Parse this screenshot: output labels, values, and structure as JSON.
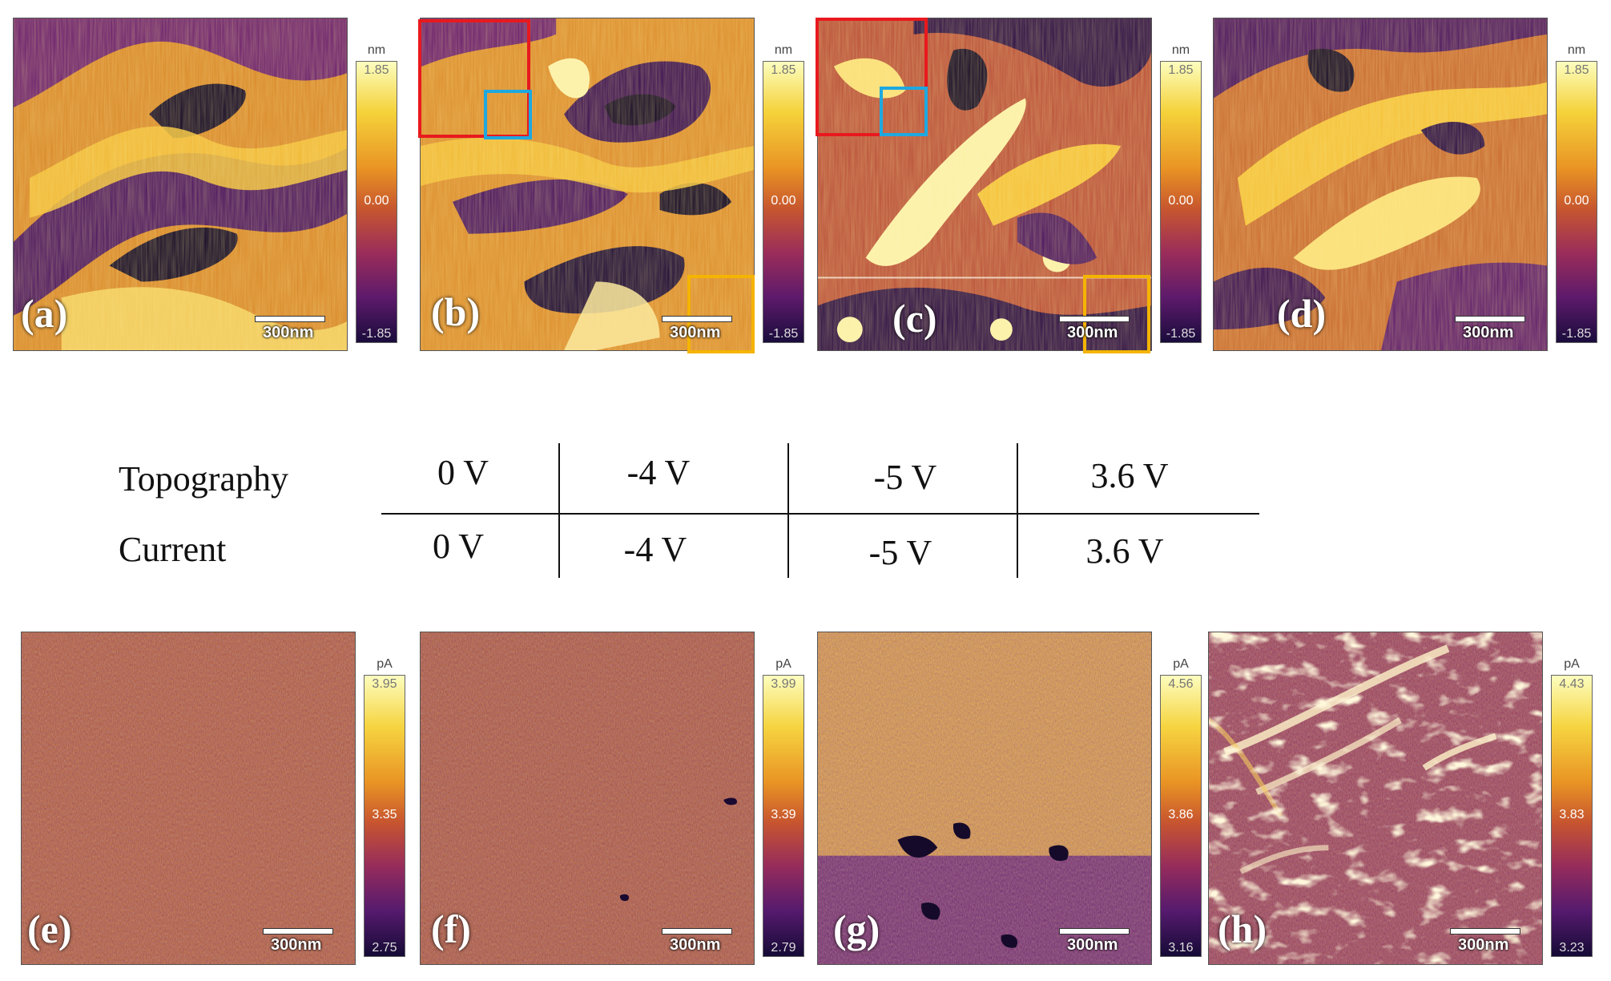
{
  "figure": {
    "topography_panels": [
      {
        "label": "(a)",
        "scale": "300nm",
        "unit": "nm",
        "max": "1.85",
        "mid": "0.00",
        "min": "-1.85"
      },
      {
        "label": "(b)",
        "scale": "300nm",
        "unit": "nm",
        "max": "1.85",
        "mid": "0.00",
        "min": "-1.85"
      },
      {
        "label": "(c)",
        "scale": "300nm",
        "unit": "nm",
        "max": "1.85",
        "mid": "0.00",
        "min": "-1.85"
      },
      {
        "label": "(d)",
        "scale": "300nm",
        "unit": "nm",
        "max": "1.85",
        "mid": "0.00",
        "min": "-1.85"
      }
    ],
    "current_panels": [
      {
        "label": "(e)",
        "scale": "300nm",
        "unit": "pA",
        "max": "3.95",
        "mid": "3.35",
        "min": "2.75"
      },
      {
        "label": "(f)",
        "scale": "300nm",
        "unit": "pA",
        "max": "3.99",
        "mid": "3.39",
        "min": "2.79"
      },
      {
        "label": "(g)",
        "scale": "300nm",
        "unit": "pA",
        "max": "4.56",
        "mid": "3.86",
        "min": "3.16"
      },
      {
        "label": "(h)",
        "scale": "300nm",
        "unit": "pA",
        "max": "4.43",
        "mid": "3.83",
        "min": "3.23"
      }
    ],
    "table": {
      "rows": [
        {
          "name": "Topography",
          "values": [
            "0 V",
            "-4 V",
            "-5 V",
            "3.6 V"
          ]
        },
        {
          "name": "Current",
          "values": [
            "0 V",
            "-4 V",
            "-5 V",
            "3.6 V"
          ]
        }
      ]
    },
    "box_colors": {
      "red": "#e8191e",
      "blue": "#1ea8e0",
      "orange": "#f4b400"
    }
  }
}
